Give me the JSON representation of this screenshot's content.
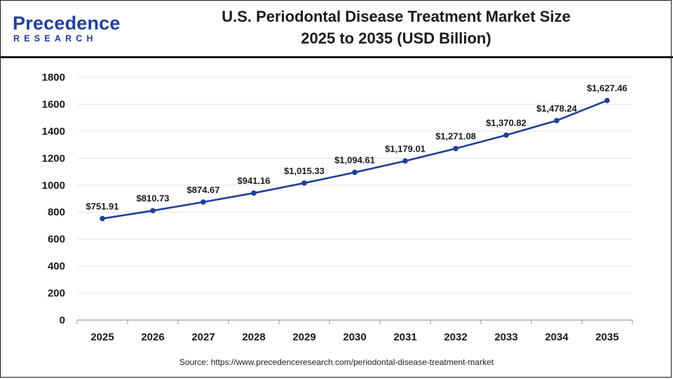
{
  "brand": {
    "name": "Precedence",
    "sub": "RESEARCH",
    "color": "#1f3f9a"
  },
  "title_line1": "U.S. Periodontal Disease Treatment Market Size",
  "title_line2": "2025 to 2035 (USD Billion)",
  "source": "Source: https://www.precedenceresearch.com/periodontal-disease-treatment-market",
  "chart_data": {
    "type": "line",
    "title": "U.S. Periodontal Disease Treatment Market Size 2025 to 2035 (USD Billion)",
    "xlabel": "",
    "ylabel": "",
    "categories": [
      "2025",
      "2026",
      "2027",
      "2028",
      "2029",
      "2030",
      "2031",
      "2032",
      "2033",
      "2034",
      "2035"
    ],
    "values": [
      751.91,
      810.73,
      874.67,
      941.16,
      1015.33,
      1094.61,
      1179.01,
      1271.08,
      1370.82,
      1478.24,
      1627.46
    ],
    "data_labels": [
      "$751.91",
      "$810.73",
      "$874.67",
      "$941.16",
      "$1,015.33",
      "$1,094.61",
      "$1,179.01",
      "$1,271.08",
      "$1,370.82",
      "$1,478.24",
      "$1,627.46"
    ],
    "yticks": [
      0,
      200,
      400,
      600,
      800,
      1000,
      1200,
      1400,
      1600,
      1800
    ],
    "ylim": [
      0,
      1800
    ],
    "grid": true,
    "line_color": "#1f3f9a",
    "grid_color": "#e4e4e4"
  }
}
